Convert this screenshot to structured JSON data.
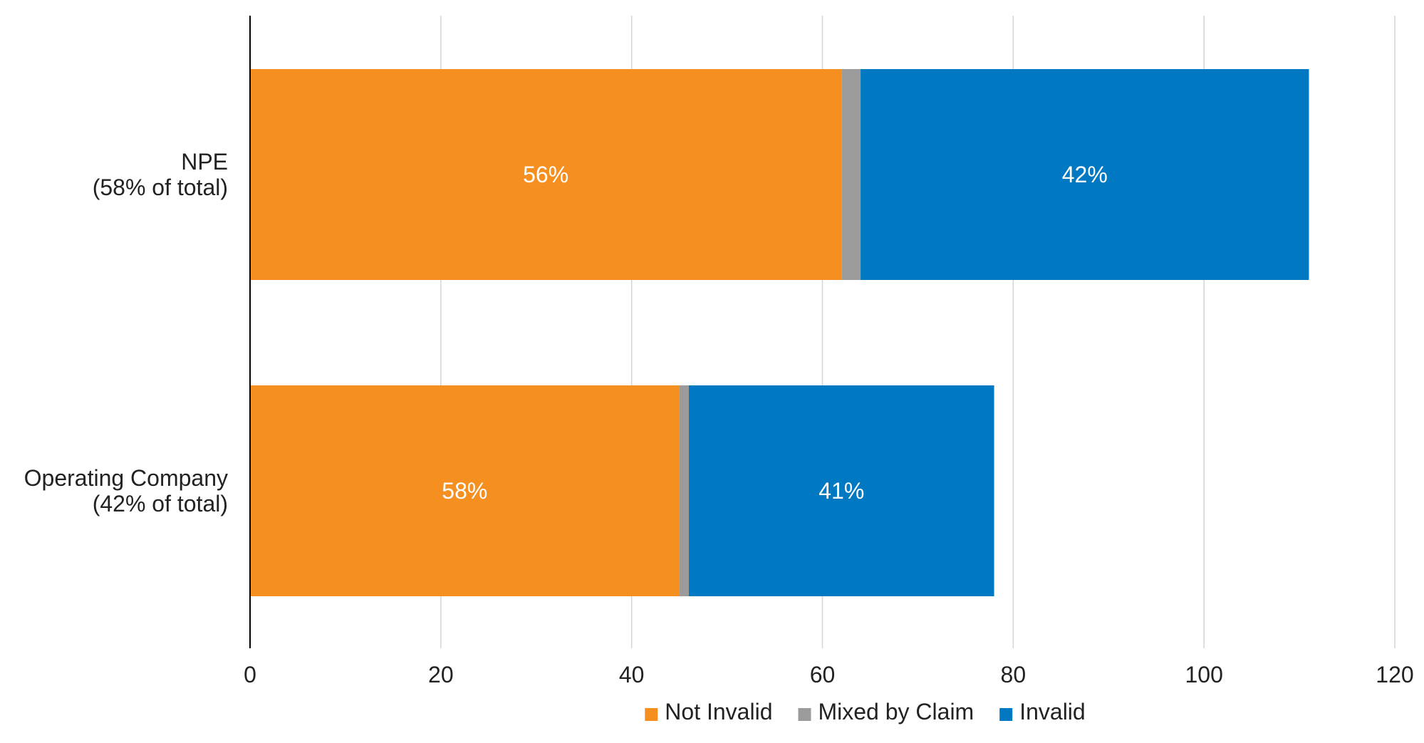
{
  "chart_data": {
    "type": "bar",
    "orientation": "horizontal",
    "stacked": true,
    "categories": [
      [
        "NPE",
        "(58% of total)"
      ],
      [
        "Operating Company",
        "(42% of total)"
      ]
    ],
    "series": [
      {
        "name": "Not Invalid",
        "color": "#F48F20",
        "values": [
          62,
          45
        ],
        "labels": [
          "56%",
          "58%"
        ]
      },
      {
        "name": "Mixed by Claim",
        "color": "#9B9B9B",
        "values": [
          2,
          1
        ],
        "labels": [
          "",
          ""
        ]
      },
      {
        "name": "Invalid",
        "color": "#0079C2",
        "values": [
          47,
          32
        ],
        "labels": [
          "42%",
          "41%"
        ]
      }
    ],
    "xlim": [
      0,
      120
    ],
    "xticks": [
      "0",
      "20",
      "40",
      "60",
      "80",
      "100",
      "120"
    ],
    "grid": true,
    "legend": "bottom",
    "title": "",
    "xlabel": "",
    "ylabel": ""
  }
}
